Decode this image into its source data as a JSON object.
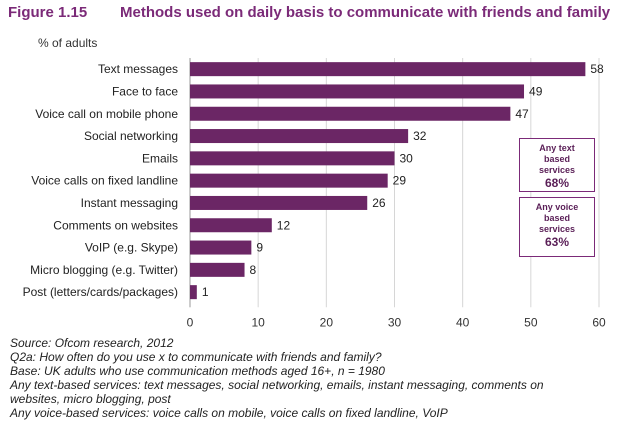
{
  "figure": {
    "label": "Figure 1.15",
    "title": "Methods used on daily basis to communicate with friends and family",
    "accent": "#7b2a78"
  },
  "chart_data": {
    "type": "bar",
    "orientation": "horizontal",
    "title": "Methods used on daily basis to communicate with friends and family",
    "ylabel": "% of adults",
    "xlabel": "",
    "categories": [
      "Text messages",
      "Face to face",
      "Voice call on mobile phone",
      "Social networking",
      "Emails",
      "Voice calls on fixed landline",
      "Instant messaging",
      "Comments on websites",
      "VoIP (e.g. Skype)",
      "Micro blogging (e.g. Twitter)",
      "Post (letters/cards/packages)"
    ],
    "values": [
      58,
      49,
      47,
      32,
      30,
      29,
      26,
      12,
      9,
      8,
      1
    ],
    "xlim": [
      0,
      60
    ],
    "xticks": [
      0,
      10,
      20,
      30,
      40,
      50,
      60
    ],
    "grid": true,
    "bar_color": "#6b2665",
    "legend": "none"
  },
  "callouts": [
    {
      "text": "Any text\nbased\nservices",
      "value": "68%"
    },
    {
      "text": "Any voice\nbased\nservices",
      "value": "63%"
    }
  ],
  "notes": [
    "Source: Ofcom research, 2012",
    "Q2a: How often do you use x to communicate with friends and family?",
    "Base: UK adults who use communication methods aged 16+, n = 1980",
    "Any text-based services: text messages, social networking, emails, instant messaging, comments on",
    "websites, micro blogging, post",
    "Any voice-based services: voice calls on mobile, voice calls on fixed landline, VoIP"
  ]
}
